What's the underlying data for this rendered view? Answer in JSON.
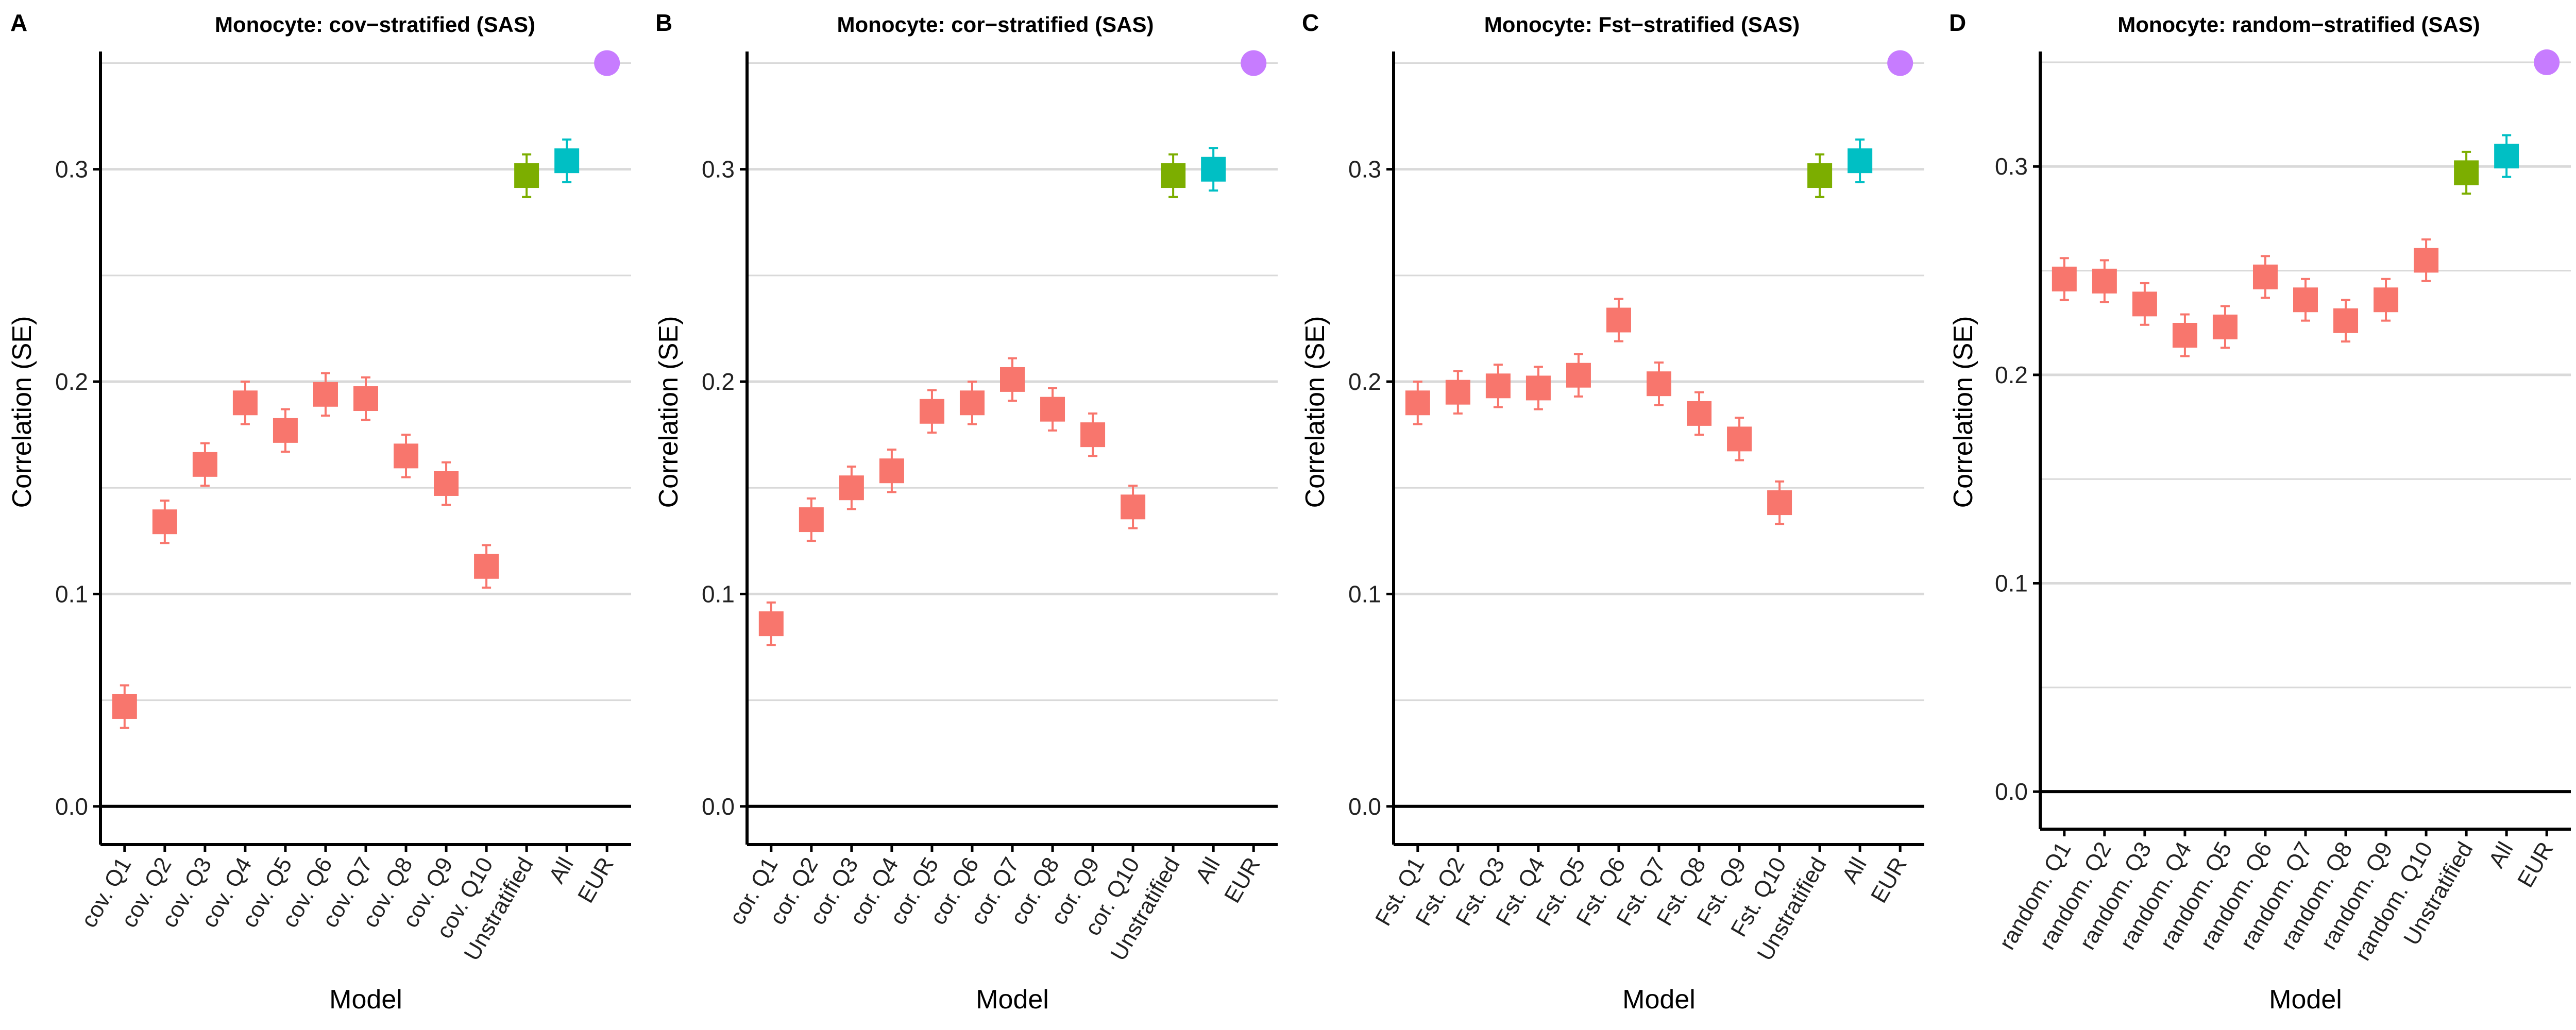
{
  "figure": {
    "panels": [
      {
        "letter": "A",
        "title": "Monocyte: cov−stratified (SAS)"
      },
      {
        "letter": "B",
        "title": "Monocyte: cor−stratified (SAS)"
      },
      {
        "letter": "C",
        "title": "Monocyte: Fst−stratified (SAS)"
      },
      {
        "letter": "D",
        "title": "Monocyte: random−stratified (SAS)"
      }
    ]
  },
  "colors": {
    "quantile": "#F8766D",
    "unstratified": "#7CAE00",
    "all": "#00BFC4",
    "eur": "#C77CFF",
    "gridline": "#d9d9d9",
    "axis": "#000000"
  },
  "chart_data": [
    {
      "type": "scatter",
      "title": "Monocyte: cov−stratified (SAS)",
      "xlabel": "Model",
      "ylabel": "Correlation (SE)",
      "ylim": [
        -0.018,
        0.37
      ],
      "yticks": [
        "0.0",
        "0.1",
        "0.2",
        "0.3"
      ],
      "grid": true,
      "categories": [
        "cov. Q1",
        "cov. Q2",
        "cov. Q3",
        "cov. Q4",
        "cov. Q5",
        "cov. Q6",
        "cov. Q7",
        "cov. Q8",
        "cov. Q9",
        "cov. Q10",
        "Unstratified",
        "All",
        "EUR"
      ],
      "values": [
        0.047,
        0.134,
        0.161,
        0.19,
        0.177,
        0.194,
        0.192,
        0.165,
        0.152,
        0.113,
        0.297,
        0.304,
        0.35
      ],
      "se": [
        0.01,
        0.01,
        0.01,
        0.01,
        0.01,
        0.01,
        0.01,
        0.01,
        0.01,
        0.01,
        0.01,
        0.01,
        0
      ]
    },
    {
      "type": "scatter",
      "title": "Monocyte: cor−stratified (SAS)",
      "xlabel": "Model",
      "ylabel": "Correlation (SE)",
      "ylim": [
        -0.018,
        0.37
      ],
      "yticks": [
        "0.0",
        "0.1",
        "0.2",
        "0.3"
      ],
      "grid": true,
      "categories": [
        "cor. Q1",
        "cor. Q2",
        "cor. Q3",
        "cor. Q4",
        "cor. Q5",
        "cor. Q6",
        "cor. Q7",
        "cor. Q8",
        "cor. Q9",
        "cor. Q10",
        "Unstratified",
        "All",
        "EUR"
      ],
      "values": [
        0.086,
        0.135,
        0.15,
        0.158,
        0.186,
        0.19,
        0.201,
        0.187,
        0.175,
        0.141,
        0.297,
        0.3,
        0.35
      ],
      "se": [
        0.01,
        0.01,
        0.01,
        0.01,
        0.01,
        0.01,
        0.01,
        0.01,
        0.01,
        0.01,
        0.01,
        0.01,
        0
      ]
    },
    {
      "type": "scatter",
      "title": "Monocyte: Fst−stratified (SAS)",
      "xlabel": "Model",
      "ylabel": "Correlation (SE)",
      "ylim": [
        -0.018,
        0.37
      ],
      "yticks": [
        "0.0",
        "0.1",
        "0.2",
        "0.3"
      ],
      "grid": true,
      "categories": [
        "Fst. Q1",
        "Fst. Q2",
        "Fst. Q3",
        "Fst. Q4",
        "Fst. Q5",
        "Fst. Q6",
        "Fst. Q7",
        "Fst. Q8",
        "Fst. Q9",
        "Fst. Q10",
        "Unstratified",
        "All",
        "EUR"
      ],
      "values": [
        0.19,
        0.195,
        0.198,
        0.197,
        0.203,
        0.229,
        0.199,
        0.185,
        0.173,
        0.143,
        0.297,
        0.304,
        0.35
      ],
      "se": [
        0.01,
        0.01,
        0.01,
        0.01,
        0.01,
        0.01,
        0.01,
        0.01,
        0.01,
        0.01,
        0.01,
        0.01,
        0
      ]
    },
    {
      "type": "scatter",
      "title": "Monocyte: random−stratified (SAS)",
      "xlabel": "Model",
      "ylabel": "Correlation (SE)",
      "ylim": [
        -0.018,
        0.37
      ],
      "yticks": [
        "0.0",
        "0.1",
        "0.2",
        "0.3"
      ],
      "grid": true,
      "categories": [
        "random. Q1",
        "random. Q2",
        "random. Q3",
        "random. Q4",
        "random. Q5",
        "random. Q6",
        "random. Q7",
        "random. Q8",
        "random. Q9",
        "random. Q10",
        "Unstratified",
        "All",
        "EUR"
      ],
      "values": [
        0.246,
        0.245,
        0.234,
        0.219,
        0.223,
        0.247,
        0.236,
        0.226,
        0.236,
        0.255,
        0.297,
        0.305,
        0.35
      ],
      "se": [
        0.01,
        0.01,
        0.01,
        0.01,
        0.01,
        0.01,
        0.01,
        0.01,
        0.01,
        0.01,
        0.01,
        0.01,
        0
      ]
    }
  ]
}
